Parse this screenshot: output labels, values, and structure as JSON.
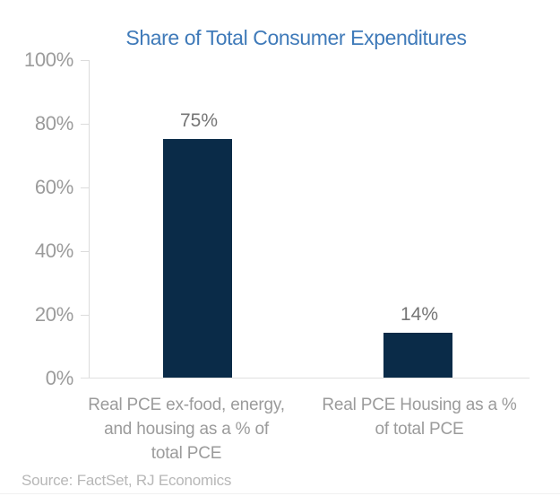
{
  "page": {
    "source_note": "Source: FactSet, RJ Economics"
  },
  "chart_data": {
    "type": "bar",
    "title": "Share of Total Consumer Expenditures",
    "categories": [
      "Real PCE ex-food, energy, and housing as a % of total PCE",
      "Real PCE Housing as a % of total PCE"
    ],
    "categories_lines": [
      [
        "Real PCE ex-food, energy,",
        "and housing as a % of",
        "total PCE"
      ],
      [
        "Real PCE Housing as a %",
        "of total PCE"
      ]
    ],
    "values": [
      75,
      14
    ],
    "data_labels": [
      "75%",
      "14%"
    ],
    "y_tick_labels": [
      "100%",
      "80%",
      "60%",
      "40%",
      "20%",
      "0%"
    ],
    "ylabel": "",
    "xlabel": "",
    "ylim": [
      0,
      100
    ],
    "grid": false,
    "legend": false,
    "colors": {
      "bar": "#0a2b48",
      "title": "#3f7ab9",
      "axis_label": "#9b9b9b",
      "data_label": "#757575",
      "category_label": "#9b9b9b",
      "source": "#b7b7b7",
      "axis_line": "#dcdcdc"
    }
  }
}
